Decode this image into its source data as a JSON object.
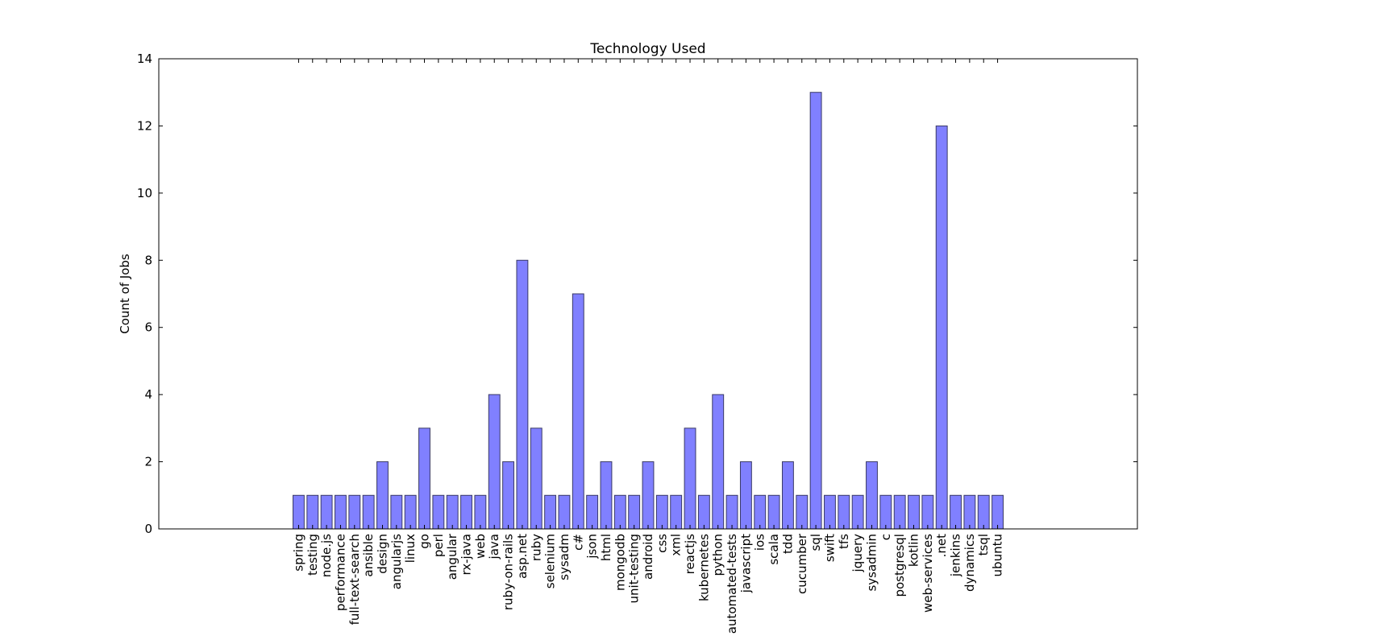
{
  "chart_data": {
    "type": "bar",
    "title": "Technology Used",
    "y_label": "Count of Jobs",
    "categories": [
      "spring",
      "testing",
      "node.js",
      "performance",
      "full-text-search",
      "ansible",
      "design",
      "angularjs",
      "linux",
      "go",
      "perl",
      "angular",
      "rx-java",
      "web",
      "java",
      "ruby-on-rails",
      "asp.net",
      "ruby",
      "selenium",
      "sysadm",
      "c#",
      "json",
      "html",
      "mongodb",
      "unit-testing",
      "android",
      "css",
      "xml",
      "reactjs",
      "kubernetes",
      "python",
      "automated-tests",
      "javascript",
      "ios",
      "scala",
      "tdd",
      "cucumber",
      "sql",
      "swift",
      "tfs",
      "jquery",
      "sysadmin",
      "c",
      "postgresql",
      "kotlin",
      "web-services",
      ".net",
      "jenkins",
      "dynamics",
      "tsql",
      "ubuntu"
    ],
    "values": [
      1,
      1,
      1,
      1,
      1,
      1,
      2,
      1,
      1,
      3,
      1,
      1,
      1,
      1,
      4,
      2,
      8,
      3,
      1,
      1,
      7,
      1,
      2,
      1,
      1,
      2,
      1,
      1,
      3,
      1,
      4,
      1,
      2,
      1,
      1,
      2,
      1,
      13,
      1,
      1,
      1,
      2,
      1,
      1,
      1,
      1,
      12,
      1,
      1,
      1,
      1
    ],
    "color": "#8080ff",
    "ylim": [
      0,
      14
    ],
    "yticks": [
      0,
      2,
      4,
      6,
      8,
      10,
      12,
      14
    ]
  }
}
